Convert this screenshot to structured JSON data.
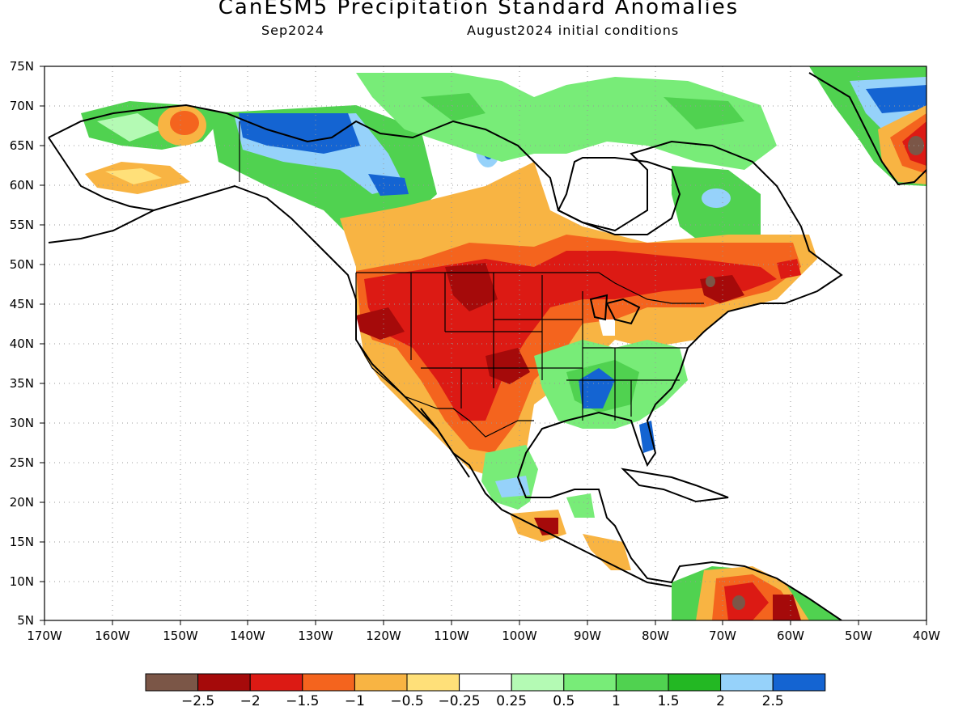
{
  "title": "CanESM5 Precipitation Standard Anomalies",
  "subtitle_left": "Sep2024",
  "subtitle_right": "August2024 initial conditions",
  "lat_labels": [
    "75N",
    "70N",
    "65N",
    "60N",
    "55N",
    "50N",
    "45N",
    "40N",
    "35N",
    "30N",
    "25N",
    "20N",
    "15N",
    "10N",
    "5N"
  ],
  "lon_labels": [
    "170W",
    "160W",
    "150W",
    "140W",
    "130W",
    "120W",
    "110W",
    "100W",
    "90W",
    "80W",
    "70W",
    "60W",
    "50W",
    "40W"
  ],
  "colorbar": {
    "colors": [
      "#7b5647",
      "#a50a0a",
      "#dc1a14",
      "#f4641e",
      "#f8b443",
      "#ffe079",
      "#ffffff",
      "#b4fab4",
      "#78ec78",
      "#50d250",
      "#23b823",
      "#96d2fa",
      "#1464d2"
    ],
    "labels": [
      "−2.5",
      "−2",
      "−1.5",
      "−1",
      "−0.5",
      "−0.25",
      "0.25",
      "0.5",
      "1",
      "1.5",
      "2",
      "2.5"
    ]
  }
}
